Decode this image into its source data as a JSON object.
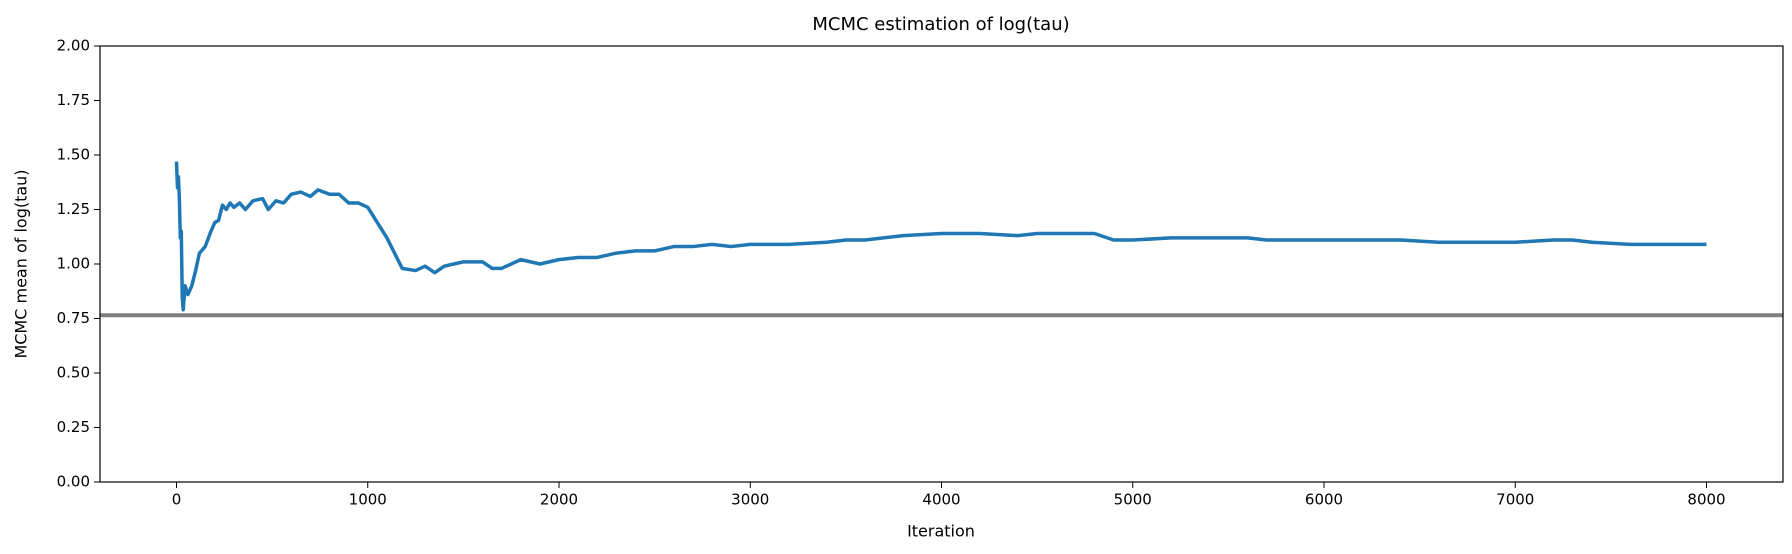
{
  "chart_data": {
    "type": "line",
    "title": "MCMC estimation of log(tau)",
    "x_label": "Iteration",
    "y_label": "MCMC mean of log(tau)",
    "x": [
      0,
      5,
      10,
      15,
      20,
      25,
      30,
      35,
      45,
      60,
      80,
      100,
      120,
      150,
      180,
      200,
      220,
      240,
      260,
      280,
      300,
      330,
      360,
      400,
      450,
      480,
      520,
      560,
      600,
      650,
      700,
      740,
      800,
      850,
      900,
      950,
      1000,
      1100,
      1180,
      1250,
      1300,
      1350,
      1400,
      1450,
      1500,
      1550,
      1600,
      1650,
      1700,
      1800,
      1900,
      2000,
      2100,
      2200,
      2300,
      2400,
      2500,
      2600,
      2700,
      2800,
      2900,
      3000,
      3200,
      3400,
      3500,
      3600,
      3800,
      4000,
      4200,
      4400,
      4500,
      4600,
      4800,
      4900,
      5000,
      5200,
      5400,
      5600,
      5700,
      5800,
      6000,
      6200,
      6400,
      6600,
      6800,
      7000,
      7200,
      7300,
      7400,
      7600,
      7800,
      8000
    ],
    "values": [
      1.47,
      1.35,
      1.4,
      1.3,
      1.12,
      1.15,
      0.85,
      0.79,
      0.9,
      0.86,
      0.9,
      0.97,
      1.05,
      1.08,
      1.15,
      1.19,
      1.2,
      1.27,
      1.25,
      1.28,
      1.26,
      1.28,
      1.25,
      1.29,
      1.3,
      1.25,
      1.29,
      1.28,
      1.32,
      1.33,
      1.31,
      1.34,
      1.32,
      1.32,
      1.28,
      1.28,
      1.26,
      1.12,
      0.98,
      0.97,
      0.99,
      0.96,
      0.99,
      1.0,
      1.01,
      1.01,
      1.01,
      0.98,
      0.98,
      1.02,
      1.0,
      1.02,
      1.03,
      1.03,
      1.05,
      1.06,
      1.06,
      1.08,
      1.08,
      1.09,
      1.08,
      1.09,
      1.09,
      1.1,
      1.11,
      1.11,
      1.13,
      1.14,
      1.14,
      1.13,
      1.14,
      1.14,
      1.14,
      1.11,
      1.11,
      1.12,
      1.12,
      1.12,
      1.11,
      1.11,
      1.11,
      1.11,
      1.11,
      1.1,
      1.1,
      1.1,
      1.11,
      1.11,
      1.1,
      1.09,
      1.09,
      1.09
    ],
    "color": "#1f77b4",
    "reference_line": {
      "value": 0.765,
      "color": "#808080"
    },
    "xlim": [
      -400,
      8400
    ],
    "ylim": [
      0,
      2
    ],
    "xticks": [
      0,
      1000,
      2000,
      3000,
      4000,
      5000,
      6000,
      7000,
      8000
    ],
    "yticks": [
      {
        "value": 0,
        "label": "0.00"
      },
      {
        "value": 0.25,
        "label": "0.25"
      },
      {
        "value": 0.5,
        "label": "0.50"
      },
      {
        "value": 0.75,
        "label": "0.75"
      },
      {
        "value": 1,
        "label": "1.00"
      },
      {
        "value": 1.25,
        "label": "1.25"
      },
      {
        "value": 1.5,
        "label": "1.50"
      },
      {
        "value": 1.75,
        "label": "1.75"
      },
      {
        "value": 2,
        "label": "2.00"
      }
    ]
  }
}
